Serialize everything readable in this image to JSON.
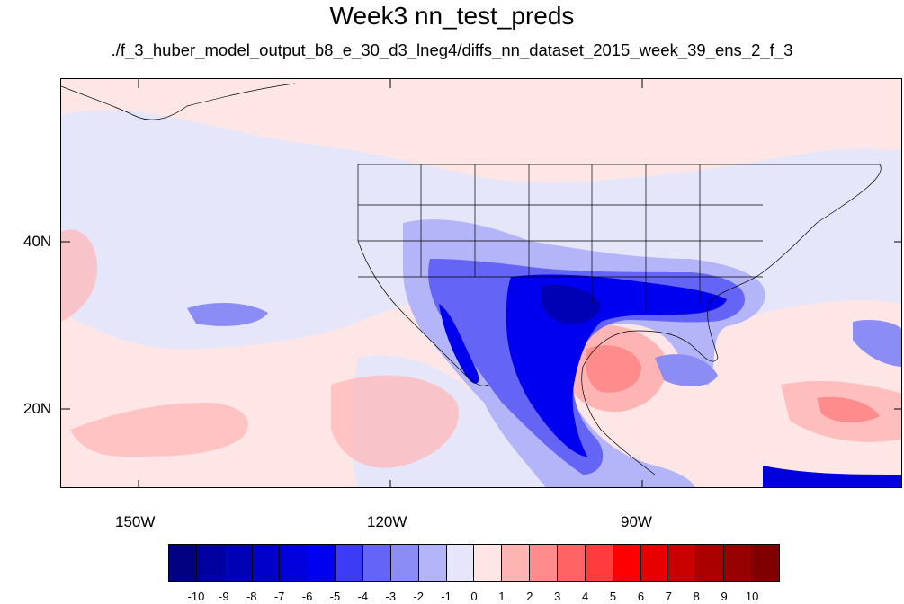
{
  "title": "Week3 nn_test_preds",
  "subtitle": "./f_3_huber_model_output_b8_e_30_d3_lneg4/diffs_nn_dataset_2015_week_39_ens_2_f_3",
  "map": {
    "lat_labels": [
      "40N",
      "20N"
    ],
    "lon_labels": [
      "150W",
      "120W",
      "90W"
    ]
  },
  "colorbar": {
    "labels": [
      "-10",
      "-9",
      "-8",
      "-7",
      "-6",
      "-5",
      "-4",
      "-3",
      "-2",
      "-1",
      "0",
      "1",
      "2",
      "3",
      "4",
      "5",
      "6",
      "7",
      "8",
      "9",
      "10"
    ],
    "colors": [
      "#000080",
      "#0000a0",
      "#0000b4",
      "#0000c8",
      "#0000dc",
      "#0000f0",
      "#3c3cf5",
      "#6464f5",
      "#8c8cf5",
      "#b4b4f8",
      "#e6e6fa",
      "#ffe6e6",
      "#ffb4b4",
      "#ff8c8c",
      "#ff6464",
      "#ff3c3c",
      "#ff0000",
      "#e60000",
      "#c80000",
      "#aa0000",
      "#960000",
      "#800000"
    ]
  }
}
